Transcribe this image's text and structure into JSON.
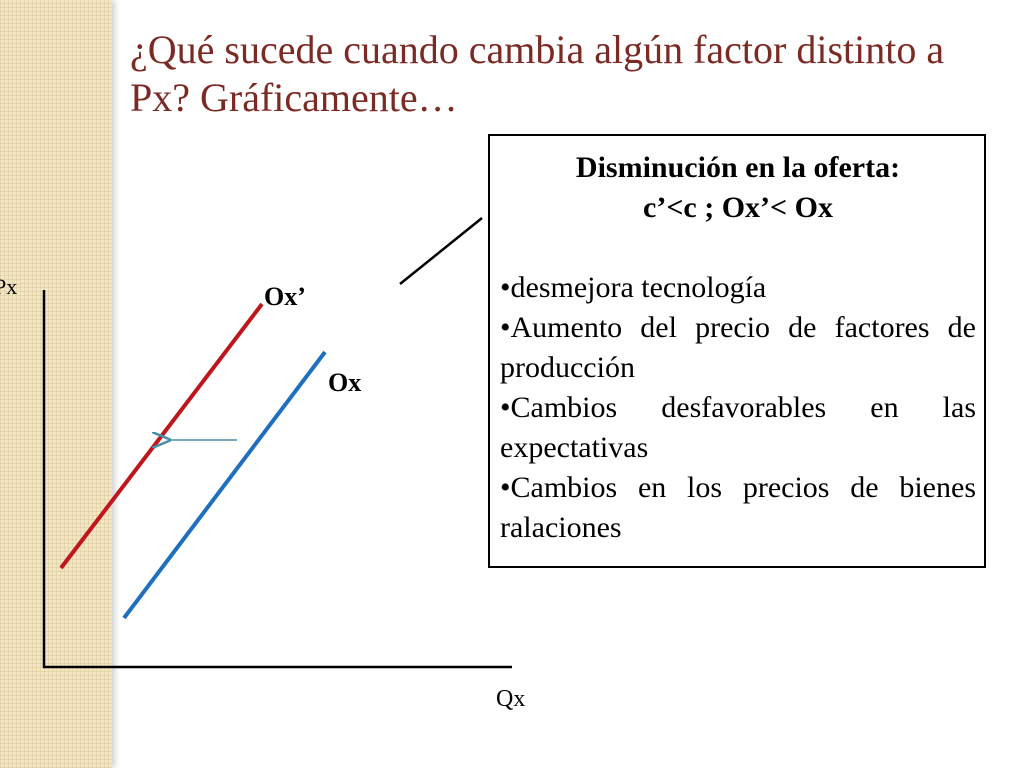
{
  "slide": {
    "title": "¿Qué sucede cuando cambia algún factor distinto a Px? Gráficamente…"
  },
  "diagram": {
    "y_axis_label": "Px",
    "x_axis_label": "Qx",
    "curve_shifted_label": "Ox’",
    "curve_original_label": "Ox",
    "colors": {
      "curve_shifted": "#c0151c",
      "curve_original": "#1f6fc0",
      "shift_arrow": "#4a8fa8",
      "accent_title": "#7b2a24"
    }
  },
  "infobox": {
    "heading_line1": "Disminución en la oferta:",
    "heading_line2": "c’<c ; Ox’< Ox",
    "bullets": [
      "•desmejora tecnología",
      "•Aumento del precio de factores de producción",
      "•Cambios desfavorables en las expectativas",
      "•Cambios en los precios de bienes ralaciones"
    ]
  }
}
